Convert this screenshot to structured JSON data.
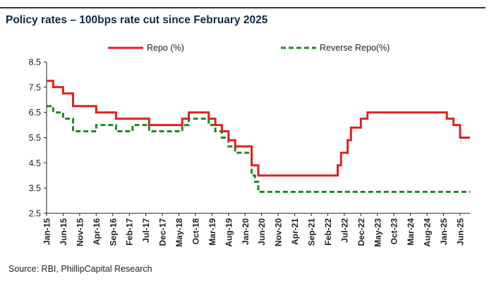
{
  "title": "Policy rates – 100bps rate cut since February 2025",
  "source": "Source: RBI, PhillipCapital Research",
  "chart_data": {
    "type": "line",
    "title": "Policy rates – 100bps rate cut since February 2025",
    "xlabel": "",
    "ylabel": "",
    "ylim": [
      2.5,
      8.5
    ],
    "yticks": [
      2.5,
      3.5,
      4.5,
      5.5,
      6.5,
      7.5,
      8.5
    ],
    "xrange": [
      "2015-01",
      "2025-09"
    ],
    "xtick_labels": [
      "Jan-15",
      "Jun-15",
      "Nov-15",
      "Apr-16",
      "Sep-16",
      "Feb-17",
      "Jul-17",
      "Dec-17",
      "May-18",
      "Oct-18",
      "Mar-19",
      "Aug-19",
      "Jan-20",
      "Jun-20",
      "Nov-20",
      "Apr-21",
      "Sep-21",
      "Feb-22",
      "Jul-22",
      "Dec-22",
      "May-23",
      "Oct-23",
      "Mar-24",
      "Aug-24",
      "Jan-25",
      "Jun-25"
    ],
    "legend_position": "top",
    "grid": false,
    "series": [
      {
        "name": "Repo (%)",
        "color": "#e02020",
        "style": "solid",
        "points": [
          [
            "2015-01",
            7.75
          ],
          [
            "2015-03",
            7.5
          ],
          [
            "2015-06",
            7.25
          ],
          [
            "2015-09",
            6.75
          ],
          [
            "2016-04",
            6.5
          ],
          [
            "2016-10",
            6.25
          ],
          [
            "2017-08",
            6.0
          ],
          [
            "2018-06",
            6.25
          ],
          [
            "2018-08",
            6.5
          ],
          [
            "2019-02",
            6.25
          ],
          [
            "2019-04",
            6.0
          ],
          [
            "2019-06",
            5.75
          ],
          [
            "2019-08",
            5.4
          ],
          [
            "2019-10",
            5.15
          ],
          [
            "2020-03",
            4.4
          ],
          [
            "2020-05",
            4.0
          ],
          [
            "2022-05",
            4.4
          ],
          [
            "2022-06",
            4.9
          ],
          [
            "2022-08",
            5.4
          ],
          [
            "2022-09",
            5.9
          ],
          [
            "2022-12",
            6.25
          ],
          [
            "2023-02",
            6.5
          ],
          [
            "2025-02",
            6.25
          ],
          [
            "2025-04",
            6.0
          ],
          [
            "2025-06",
            5.5
          ],
          [
            "2025-09",
            5.5
          ]
        ]
      },
      {
        "name": "Reverse Repo(%)",
        "color": "#1e8a1e",
        "style": "dashed",
        "points": [
          [
            "2015-01",
            6.75
          ],
          [
            "2015-03",
            6.5
          ],
          [
            "2015-06",
            6.25
          ],
          [
            "2015-09",
            5.75
          ],
          [
            "2016-04",
            6.0
          ],
          [
            "2016-10",
            5.75
          ],
          [
            "2017-03",
            6.0
          ],
          [
            "2017-08",
            5.75
          ],
          [
            "2018-06",
            6.0
          ],
          [
            "2018-08",
            6.25
          ],
          [
            "2019-02",
            6.0
          ],
          [
            "2019-04",
            5.75
          ],
          [
            "2019-06",
            5.5
          ],
          [
            "2019-08",
            5.15
          ],
          [
            "2019-10",
            4.9
          ],
          [
            "2020-03",
            4.0
          ],
          [
            "2020-04",
            3.75
          ],
          [
            "2020-05",
            3.35
          ],
          [
            "2025-09",
            3.35
          ]
        ]
      }
    ]
  }
}
